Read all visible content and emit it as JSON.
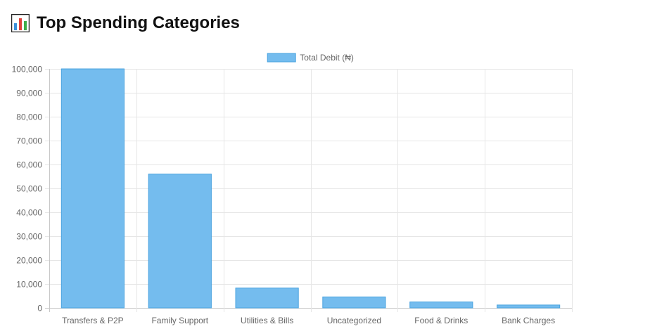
{
  "page": {
    "title": "Top Spending Categories",
    "title_icon": "bar-chart-emoji-icon"
  },
  "chart_data": {
    "type": "bar",
    "categories": [
      "Transfers & P2P",
      "Family Support",
      "Utilities & Bills",
      "Uncategorized",
      "Food & Drinks",
      "Bank Charges"
    ],
    "series": [
      {
        "name": "Total Debit (₦)",
        "values": [
          100000,
          56000,
          8300,
          4600,
          2500,
          1200
        ],
        "color": "#74bcee",
        "border_color": "#4aa3df"
      }
    ],
    "y_ticks": [
      "0",
      "10,000",
      "20,000",
      "30,000",
      "40,000",
      "50,000",
      "60,000",
      "70,000",
      "80,000",
      "90,000",
      "100,000"
    ],
    "ylim": [
      0,
      100000
    ],
    "legend_position": "top",
    "grid": true
  }
}
